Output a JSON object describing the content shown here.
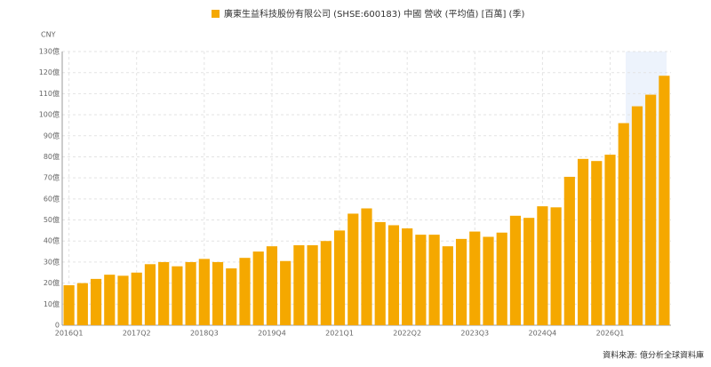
{
  "chart_data": {
    "type": "bar",
    "series": [
      {
        "name": "廣東生益科技股份有限公司 (SHSE:600183) 中國 營收 (平均值) [百萬] (季)",
        "color": "#f5a800",
        "values": [
          19,
          20,
          22,
          24,
          23.5,
          25,
          29,
          30,
          28,
          30,
          31.5,
          30,
          27,
          32,
          35,
          37.5,
          30.5,
          38,
          38,
          40,
          45,
          53,
          55.5,
          49,
          47.5,
          46,
          43,
          43,
          37.5,
          41,
          44.5,
          42,
          44,
          52,
          51,
          56.5,
          56,
          70.5,
          79,
          78,
          81,
          96,
          104,
          109.5,
          118.5
        ]
      }
    ],
    "categories": [
      "2016Q1",
      null,
      null,
      null,
      null,
      "2017Q2",
      null,
      null,
      null,
      null,
      "2018Q3",
      null,
      null,
      null,
      null,
      "2019Q4",
      null,
      null,
      null,
      null,
      "2021Q1",
      null,
      null,
      null,
      null,
      "2022Q2",
      null,
      null,
      null,
      null,
      "2023Q3",
      null,
      null,
      null,
      null,
      "2024Q4",
      null,
      null,
      null,
      null,
      "2026Q1",
      null,
      null,
      null,
      null
    ],
    "unit": "CNY",
    "source": "資料來源: 億分析全球資料庫",
    "ylim": [
      0,
      130
    ],
    "yticks": [
      0,
      {
        "value": 10,
        "label": "10億"
      },
      {
        "value": 20,
        "label": "20億"
      },
      {
        "value": 30,
        "label": "30億"
      },
      {
        "value": 40,
        "label": "40億"
      },
      {
        "value": 50,
        "label": "50億"
      },
      {
        "value": 60,
        "label": "60億"
      },
      {
        "value": 70,
        "label": "70億"
      },
      {
        "value": 80,
        "label": "80億"
      },
      {
        "value": 90,
        "label": "90億"
      },
      {
        "value": 100,
        "label": "100億"
      },
      {
        "value": 110,
        "label": "110億"
      },
      {
        "value": 120,
        "label": "120億"
      },
      {
        "value": 130,
        "label": "130億"
      }
    ],
    "grid": true
  }
}
